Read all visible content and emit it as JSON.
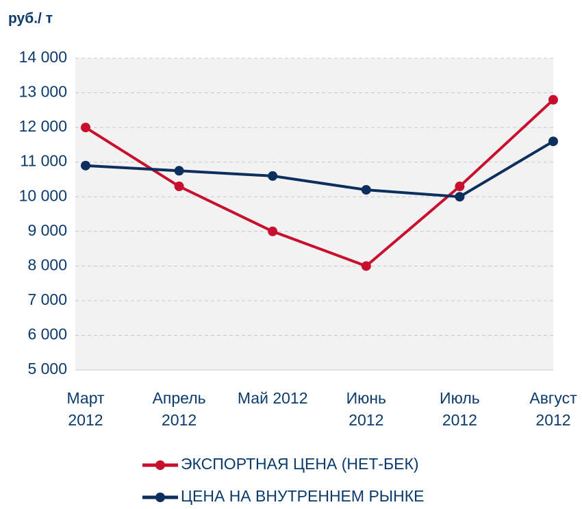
{
  "chart_data": {
    "type": "line",
    "y_label": "руб./ т",
    "categories": [
      [
        "Март",
        "2012"
      ],
      [
        "Апрель",
        "2012"
      ],
      [
        "Май 2012"
      ],
      [
        "Июнь",
        "2012"
      ],
      [
        "Июль",
        "2012"
      ],
      [
        "Август",
        "2012"
      ]
    ],
    "series": [
      {
        "name": "ЭКСПОРТНАЯ ЦЕНА (НЕТ-БЕК)",
        "color": "#c8102e",
        "values": [
          12000,
          10300,
          9000,
          8000,
          10300,
          12800
        ]
      },
      {
        "name": "ЦЕНА НА ВНУТРЕННЕМ РЫНКЕ",
        "color": "#0d2f5e",
        "values": [
          10900,
          10750,
          10600,
          10200,
          10000,
          11600
        ]
      }
    ],
    "ylim": [
      5000,
      14000
    ],
    "yticks": [
      {
        "value": 5000,
        "label": "5 000"
      },
      {
        "value": 6000,
        "label": "6 000"
      },
      {
        "value": 7000,
        "label": "7 000"
      },
      {
        "value": 8000,
        "label": "8 000"
      },
      {
        "value": 9000,
        "label": "9 000"
      },
      {
        "value": 10000,
        "label": "10 000"
      },
      {
        "value": 11000,
        "label": "11 000"
      },
      {
        "value": 12000,
        "label": "12 000"
      },
      {
        "value": 13000,
        "label": "13 000"
      },
      {
        "value": 14000,
        "label": "14 000"
      }
    ],
    "grid": true,
    "legend": "bottom"
  }
}
